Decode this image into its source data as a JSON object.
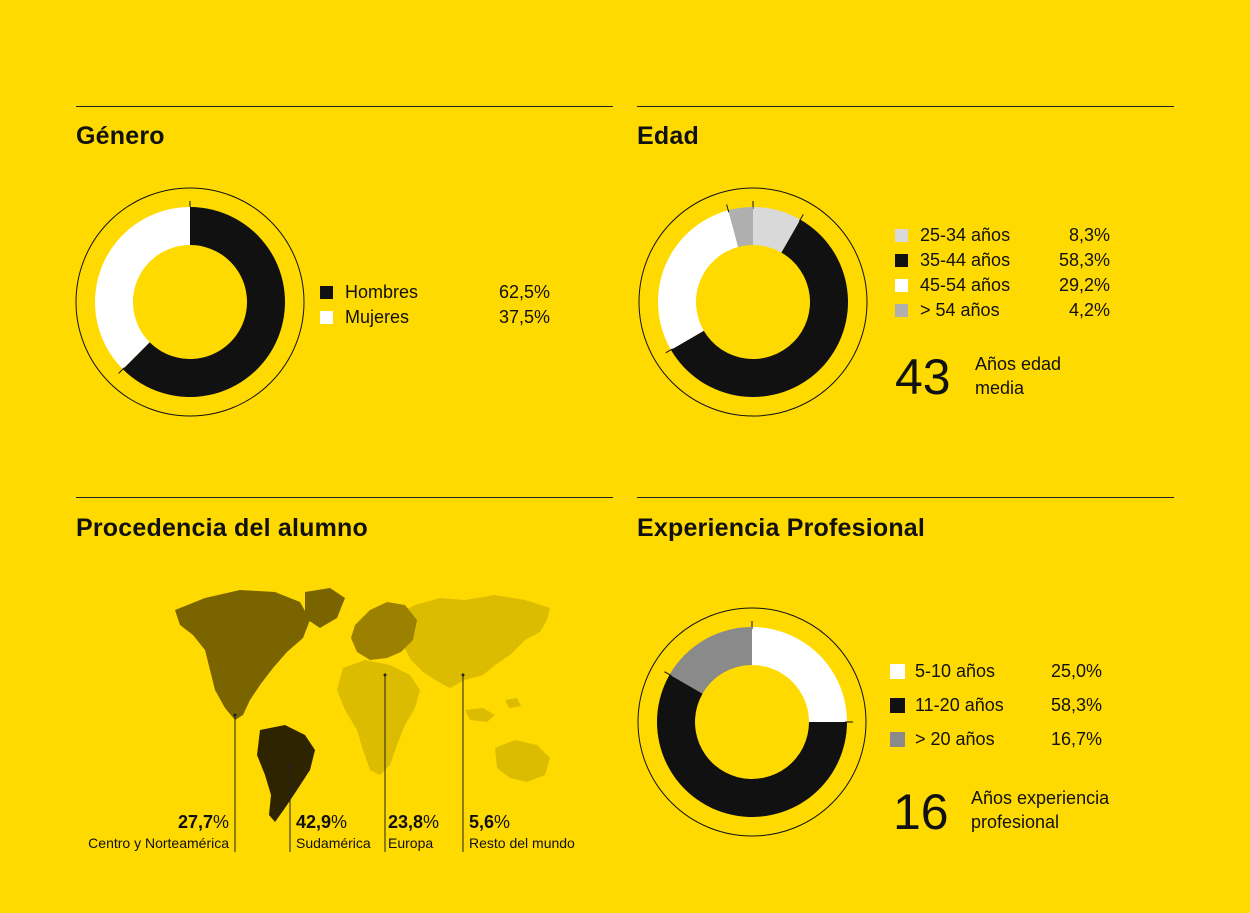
{
  "colors": {
    "background": "#FFDA00",
    "black": "#111111",
    "white": "#FFFFFF",
    "light_gray": "#D9D9D9",
    "mid_gray": "#AFAFAF",
    "dark_gray": "#8A8A8A"
  },
  "sections": {
    "genero": {
      "title": "Género"
    },
    "edad": {
      "title": "Edad",
      "big_number": "43",
      "big_caption_1": "Años edad",
      "big_caption_2": "media"
    },
    "procedencia": {
      "title": "Procedencia del alumno"
    },
    "experiencia": {
      "title": "Experiencia Profesional",
      "big_number": "16",
      "big_caption_1": "Años experiencia",
      "big_caption_2": "profesional"
    }
  },
  "chart_data": [
    {
      "type": "pie",
      "variant": "donut",
      "title": "Género",
      "series": [
        {
          "name": "Hombres",
          "value": 62.5,
          "label": "62,5%",
          "color": "#111111"
        },
        {
          "name": "Mujeres",
          "value": 37.5,
          "label": "37,5%",
          "color": "#FFFFFF"
        }
      ]
    },
    {
      "type": "pie",
      "variant": "donut",
      "title": "Edad",
      "series": [
        {
          "name": "25-34 años",
          "value": 8.3,
          "label": "8,3%",
          "color": "#D9D9D9"
        },
        {
          "name": "35-44 años",
          "value": 58.3,
          "label": "58,3%",
          "color": "#111111"
        },
        {
          "name": "45-54 años",
          "value": 29.2,
          "label": "29,2%",
          "color": "#FFFFFF"
        },
        {
          "name": "> 54 años",
          "value": 4.2,
          "label": "4,2%",
          "color": "#AFAFAF"
        }
      ]
    },
    {
      "type": "pie",
      "variant": "donut",
      "title": "Experiencia Profesional",
      "series": [
        {
          "name": "5-10 años",
          "value": 25.0,
          "label": "25,0%",
          "color": "#FFFFFF"
        },
        {
          "name": "11-20 años",
          "value": 58.3,
          "label": "58,3%",
          "color": "#111111"
        },
        {
          "name": "> 20 años",
          "value": 16.7,
          "label": "16,7%",
          "color": "#8A8A8A"
        }
      ]
    },
    {
      "type": "map",
      "title": "Procedencia del alumno",
      "regions": [
        {
          "name": "Centro y Norteamérica",
          "value": 27.7,
          "value_text": "27,7",
          "color": "#7A6400"
        },
        {
          "name": "Sudamérica",
          "value": 42.9,
          "value_text": "42,9",
          "color": "#2E2500"
        },
        {
          "name": "Europa",
          "value": 23.8,
          "value_text": "23,8",
          "color": "#9C8100"
        },
        {
          "name": "Resto del mundo",
          "value": 5.6,
          "value_text": "5,6",
          "color": "#D9BA00"
        }
      ],
      "percent_sign": "%"
    }
  ]
}
